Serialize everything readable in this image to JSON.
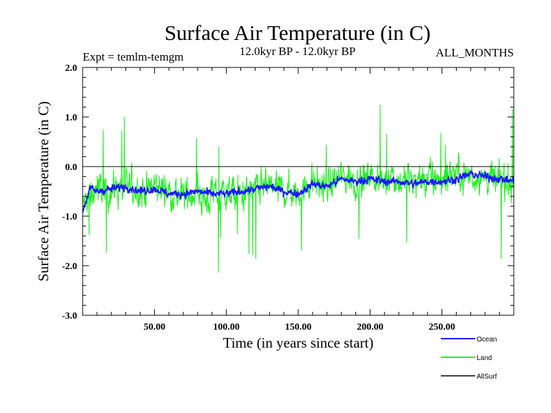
{
  "chart_data": {
    "type": "line",
    "title": "Surface Air Temperature (in C)",
    "subtitle": "12.0kyr BP - 12.0kyr BP",
    "left_note": "Expt = temlm-temgm",
    "right_note": "ALL_MONTHS",
    "xlabel": "Time (in years since start)",
    "ylabel": "Surface Air Temperature (in C)",
    "xlim": [
      0,
      300
    ],
    "ylim": [
      -3.0,
      2.0
    ],
    "x_ticks": [
      50,
      100,
      150,
      200,
      250
    ],
    "x_tick_labels": [
      "50.00",
      "100.00",
      "150.00",
      "200.00",
      "250.00"
    ],
    "y_ticks": [
      2.0,
      1.0,
      0.0,
      -1.0,
      -2.0,
      -3.0
    ],
    "y_tick_labels": [
      "2.0",
      "1.0",
      "0.0",
      "-1.0",
      "-2.0",
      "-3.0"
    ],
    "reference_line": 0.0,
    "legend_position": "bottom-right",
    "colors": {
      "Ocean": "#1a1aff",
      "Land": "#22ee22",
      "AllSurf": "#000000"
    },
    "series": [
      {
        "name": "Land",
        "x": [
          0,
          10,
          20,
          30,
          40,
          50,
          60,
          70,
          80,
          85,
          90,
          100,
          110,
          120,
          130,
          140,
          150,
          160,
          170,
          180,
          190,
          200,
          210,
          215,
          220,
          230,
          240,
          250,
          260,
          270,
          280,
          290,
          300
        ],
        "values": [
          -0.8,
          -0.4,
          -0.5,
          -0.4,
          -0.5,
          -0.4,
          -0.5,
          -0.6,
          -0.5,
          -0.7,
          -0.6,
          -0.5,
          -0.6,
          -0.5,
          -0.4,
          -0.5,
          -0.5,
          -0.3,
          -0.4,
          -0.2,
          -0.3,
          -0.2,
          -0.3,
          -0.1,
          -0.3,
          -0.3,
          -0.3,
          -0.2,
          -0.1,
          -0.2,
          -0.2,
          -0.3,
          -0.3
        ]
      },
      {
        "name": "Ocean",
        "x": [
          0,
          5,
          10,
          20,
          30,
          40,
          50,
          60,
          70,
          80,
          90,
          100,
          110,
          120,
          130,
          140,
          150,
          160,
          170,
          180,
          190,
          200,
          210,
          220,
          230,
          240,
          250,
          260,
          270,
          280,
          290,
          300
        ],
        "values": [
          -0.9,
          -0.45,
          -0.5,
          -0.45,
          -0.4,
          -0.5,
          -0.45,
          -0.55,
          -0.55,
          -0.5,
          -0.55,
          -0.55,
          -0.5,
          -0.45,
          -0.4,
          -0.5,
          -0.55,
          -0.35,
          -0.4,
          -0.25,
          -0.3,
          -0.25,
          -0.3,
          -0.3,
          -0.35,
          -0.3,
          -0.3,
          -0.25,
          -0.15,
          -0.2,
          -0.25,
          -0.3
        ]
      },
      {
        "name": "AllSurf",
        "x": [],
        "values": []
      }
    ]
  }
}
